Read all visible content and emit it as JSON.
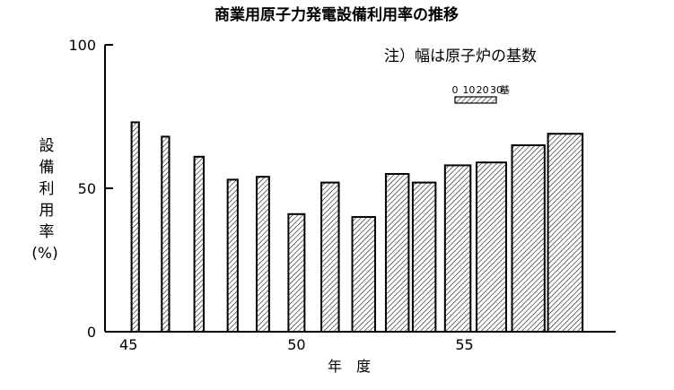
{
  "chart_data": {
    "type": "bar",
    "title": "商業用原子力発電設備利用率の推移",
    "xlabel": "年　度",
    "ylabel": [
      "設",
      "備",
      "利",
      "用",
      "率",
      "(%)"
    ],
    "ylim": [
      0,
      100
    ],
    "yticks": [
      "0",
      "50",
      "100"
    ],
    "xticks": [
      {
        "label": "45",
        "at": 45
      },
      {
        "label": "50",
        "at": 50
      },
      {
        "label": "55",
        "at": 55
      }
    ],
    "xlim": [
      44.3,
      59.5
    ],
    "note": "注）幅は原子炉の基数",
    "width_scale": {
      "labels": [
        "0",
        "10",
        "20",
        "30"
      ],
      "unit": "基"
    },
    "bars": [
      {
        "x": 45.2,
        "value": 73,
        "width_units": 0.22
      },
      {
        "x": 46.1,
        "value": 68,
        "width_units": 0.22
      },
      {
        "x": 47.1,
        "value": 61,
        "width_units": 0.28
      },
      {
        "x": 48.1,
        "value": 53,
        "width_units": 0.3
      },
      {
        "x": 49.0,
        "value": 54,
        "width_units": 0.37
      },
      {
        "x": 50.0,
        "value": 41,
        "width_units": 0.48
      },
      {
        "x": 51.0,
        "value": 52,
        "width_units": 0.52
      },
      {
        "x": 52.0,
        "value": 40,
        "width_units": 0.68
      },
      {
        "x": 53.0,
        "value": 55,
        "width_units": 0.68
      },
      {
        "x": 53.8,
        "value": 52,
        "width_units": 0.68
      },
      {
        "x": 54.8,
        "value": 58,
        "width_units": 0.76
      },
      {
        "x": 55.8,
        "value": 59,
        "width_units": 0.88
      },
      {
        "x": 56.9,
        "value": 65,
        "width_units": 0.97
      },
      {
        "x": 58.0,
        "value": 69,
        "width_units": 1.03
      }
    ]
  }
}
